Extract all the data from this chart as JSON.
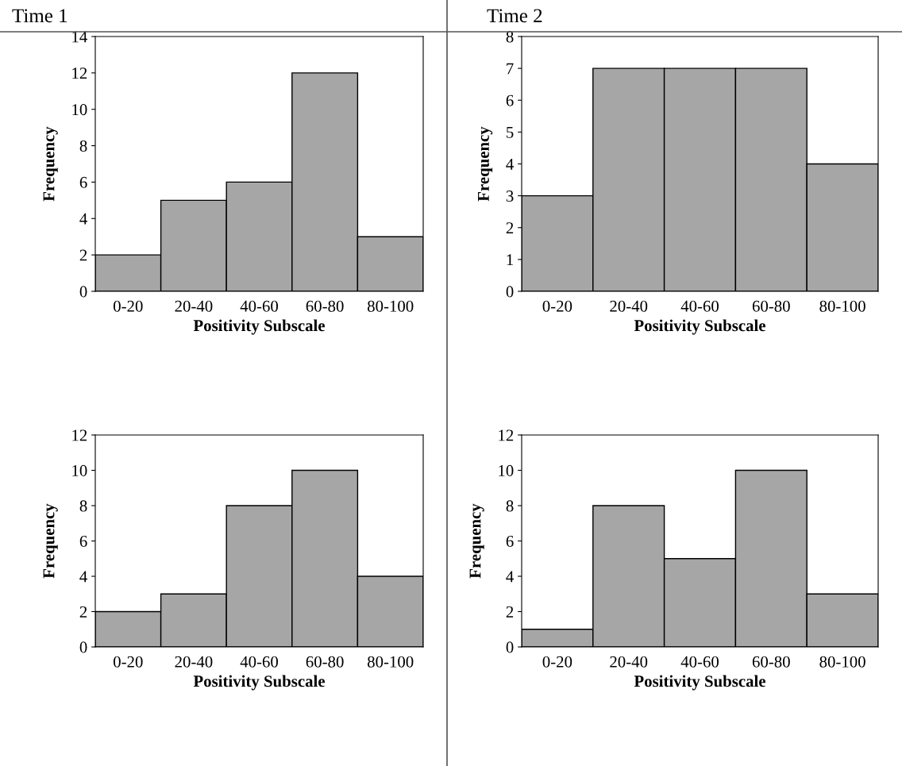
{
  "chart_data": [
    {
      "type": "bar",
      "title": "Time 1",
      "xlabel": "Positivity Subscale",
      "ylabel": "Frequency",
      "categories": [
        "0-20",
        "20-40",
        "40-60",
        "60-80",
        "80-100"
      ],
      "values": [
        2,
        5,
        6,
        12,
        3
      ],
      "color": "#a6a6a6",
      "ylim": [
        0,
        14
      ],
      "yticks": [
        0,
        2,
        4,
        6,
        8,
        10,
        12,
        14
      ],
      "grid": false,
      "legend": false
    },
    {
      "type": "bar",
      "title": "Time 2",
      "xlabel": "Positivity Subscale",
      "ylabel": "Frequency",
      "categories": [
        "0-20",
        "20-40",
        "40-60",
        "60-80",
        "80-100"
      ],
      "values": [
        3,
        7,
        7,
        7,
        4
      ],
      "color": "#a6a6a6",
      "ylim": [
        0,
        8
      ],
      "yticks": [
        0,
        1,
        2,
        3,
        4,
        5,
        6,
        7,
        8
      ],
      "grid": false,
      "legend": false
    },
    {
      "type": "bar",
      "xlabel": "Positivity Subscale",
      "ylabel": "Frequency",
      "categories": [
        "0-20",
        "20-40",
        "40-60",
        "60-80",
        "80-100"
      ],
      "values": [
        2,
        3,
        8,
        10,
        4
      ],
      "color": "#a6a6a6",
      "ylim": [
        0,
        12
      ],
      "yticks": [
        0,
        2,
        4,
        6,
        8,
        10,
        12
      ],
      "grid": false,
      "legend": false
    },
    {
      "type": "bar",
      "xlabel": "Positivity Subscale",
      "ylabel": "Frequency",
      "categories": [
        "0-20",
        "20-40",
        "40-60",
        "60-80",
        "80-100"
      ],
      "values": [
        1,
        8,
        5,
        10,
        3
      ],
      "color": "#a6a6a6",
      "ylim": [
        0,
        12
      ],
      "yticks": [
        0,
        2,
        4,
        6,
        8,
        10,
        12
      ],
      "grid": false,
      "legend": false
    }
  ]
}
